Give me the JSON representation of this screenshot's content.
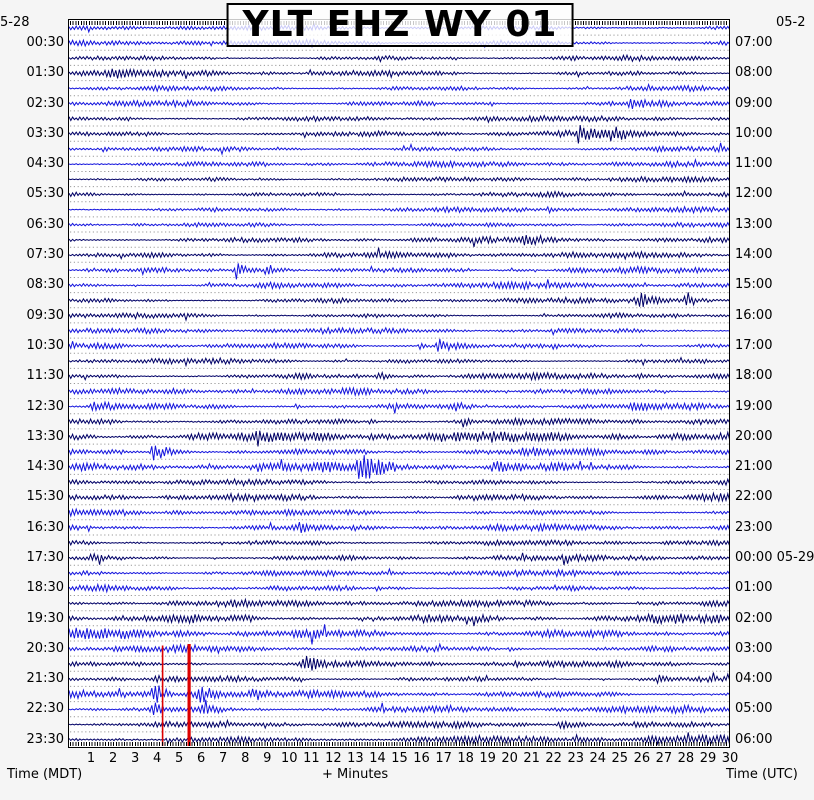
{
  "title": "YLT EHZ WY 01",
  "header": {
    "date_left": "5-28",
    "date_right": "05-2"
  },
  "axes": {
    "left_axis_title": "Time (MDT)",
    "right_axis_title": "Time (UTC)",
    "bottom_axis_title": "+ Minutes",
    "minute_ticks": [
      "1",
      "2",
      "3",
      "4",
      "5",
      "6",
      "7",
      "8",
      "9",
      "10",
      "11",
      "12",
      "13",
      "14",
      "15",
      "16",
      "17",
      "18",
      "19",
      "20",
      "21",
      "22",
      "23",
      "24",
      "25",
      "26",
      "27",
      "28",
      "29",
      "30"
    ],
    "left_times": [
      "00:30",
      "01:30",
      "02:30",
      "03:30",
      "04:30",
      "05:30",
      "06:30",
      "07:30",
      "08:30",
      "09:30",
      "10:30",
      "11:30",
      "12:30",
      "13:30",
      "14:30",
      "15:30",
      "16:30",
      "17:30",
      "18:30",
      "19:30",
      "20:30",
      "21:30",
      "22:30",
      "23:30"
    ],
    "right_times": [
      "07:00",
      "08:00",
      "09:00",
      "10:00",
      "11:00",
      "12:00",
      "13:00",
      "14:00",
      "15:00",
      "16:00",
      "17:00",
      "18:00",
      "19:00",
      "20:00",
      "21:00",
      "22:00",
      "23:00",
      "00:00 05-29",
      "01:00",
      "02:00",
      "03:00",
      "04:00",
      "05:00",
      "06:00"
    ]
  },
  "chart_data": {
    "type": "line",
    "subtype": "helicorder-seismogram",
    "title": "YLT EHZ WY 01",
    "minutes_per_line": 30,
    "n_lines": 48,
    "x_range_minutes": [
      0,
      30
    ],
    "legend": "none",
    "grid": "dotted horizontal separators between trace lines",
    "color_cycle": [
      "#1515dd",
      "#1515dd",
      "#000066",
      "#000066"
    ],
    "grid_dot_color": "#999999",
    "pick_color": "#dd0000",
    "background": "#ffffff",
    "noise_seed": 20240528,
    "picks": [
      {
        "minute": 4.25,
        "width": 1.6,
        "top_line": 41.3
      },
      {
        "minute": 5.45,
        "width": 3.2,
        "top_line": 41.2
      }
    ],
    "lines": [
      {
        "t": "00:00",
        "a": 2.4,
        "e": []
      },
      {
        "t": "00:30",
        "a": 3.0,
        "e": []
      },
      {
        "t": "01:00",
        "a": 2.6,
        "e": []
      },
      {
        "t": "01:30",
        "a": 3.0,
        "e": [
          [
            1.6,
            3.2,
            5
          ]
        ]
      },
      {
        "t": "02:00",
        "a": 2.8,
        "e": []
      },
      {
        "t": "02:30",
        "a": 3.0,
        "e": [
          [
            19.0,
            19.6,
            3
          ],
          [
            25.3,
            26.6,
            5
          ]
        ]
      },
      {
        "t": "03:00",
        "a": 2.6,
        "e": []
      },
      {
        "t": "03:30",
        "a": 3.0,
        "e": [
          [
            22.9,
            24.3,
            7
          ],
          [
            24.4,
            26.1,
            5
          ]
        ]
      },
      {
        "t": "04:00",
        "a": 2.8,
        "e": [
          [
            1.5,
            2.0,
            3
          ]
        ]
      },
      {
        "t": "04:30",
        "a": 2.8,
        "e": []
      },
      {
        "t": "05:00",
        "a": 2.5,
        "e": []
      },
      {
        "t": "05:30",
        "a": 2.5,
        "e": [
          [
            21.7,
            22.2,
            3
          ]
        ]
      },
      {
        "t": "06:00",
        "a": 2.5,
        "e": [
          [
            21.7,
            22.2,
            4
          ]
        ]
      },
      {
        "t": "06:30",
        "a": 2.5,
        "e": []
      },
      {
        "t": "07:00",
        "a": 2.6,
        "e": [
          [
            20.4,
            22.3,
            3
          ]
        ]
      },
      {
        "t": "07:30",
        "a": 3.0,
        "e": []
      },
      {
        "t": "08:00",
        "a": 3.0,
        "e": [
          [
            7.4,
            8.7,
            9
          ],
          [
            8.8,
            10.5,
            5
          ]
        ]
      },
      {
        "t": "08:30",
        "a": 3.0,
        "e": []
      },
      {
        "t": "09:00",
        "a": 2.6,
        "e": [
          [
            25.6,
            27.6,
            6
          ],
          [
            27.9,
            28.6,
            9
          ]
        ]
      },
      {
        "t": "09:30",
        "a": 2.6,
        "e": []
      },
      {
        "t": "10:00",
        "a": 2.6,
        "e": []
      },
      {
        "t": "10:30",
        "a": 3.0,
        "e": [
          [
            15.8,
            16.5,
            6
          ],
          [
            16.6,
            18.2,
            8
          ],
          [
            21.9,
            22.3,
            4
          ]
        ]
      },
      {
        "t": "11:00",
        "a": 2.6,
        "e": []
      },
      {
        "t": "11:30",
        "a": 3.0,
        "e": [
          [
            13.9,
            14.8,
            5
          ],
          [
            25.8,
            26.3,
            3
          ]
        ]
      },
      {
        "t": "12:00",
        "a": 3.0,
        "e": []
      },
      {
        "t": "12:30",
        "a": 3.4,
        "e": [
          [
            0.9,
            2.9,
            4
          ],
          [
            10.2,
            10.7,
            3
          ],
          [
            17.5,
            18.0,
            5
          ]
        ]
      },
      {
        "t": "13:00",
        "a": 3.6,
        "e": [
          [
            13.5,
            14.2,
            3
          ],
          [
            17.8,
            18.3,
            4
          ]
        ]
      },
      {
        "t": "13:30",
        "a": 5.0,
        "e": [
          [
            24.6,
            25.4,
            4
          ]
        ]
      },
      {
        "t": "14:00",
        "a": 3.4,
        "e": [
          [
            3.6,
            5.3,
            10
          ]
        ]
      },
      {
        "t": "14:30",
        "a": 4.0,
        "e": [
          [
            12.9,
            14.9,
            13
          ],
          [
            19.0,
            21.0,
            4
          ]
        ]
      },
      {
        "t": "15:00",
        "a": 3.0,
        "e": []
      },
      {
        "t": "15:30",
        "a": 4.0,
        "e": []
      },
      {
        "t": "16:00",
        "a": 3.0,
        "e": []
      },
      {
        "t": "16:30",
        "a": 3.0,
        "e": [
          [
            10.4,
            10.9,
            4
          ],
          [
            19.4,
            19.9,
            4
          ]
        ]
      },
      {
        "t": "17:00",
        "a": 2.8,
        "e": []
      },
      {
        "t": "17:30",
        "a": 3.0,
        "e": [
          [
            0.9,
            1.4,
            4
          ],
          [
            19.2,
            19.8,
            5
          ]
        ]
      },
      {
        "t": "18:00",
        "a": 2.8,
        "e": []
      },
      {
        "t": "18:30",
        "a": 3.0,
        "e": [
          [
            13.9,
            14.4,
            4
          ]
        ]
      },
      {
        "t": "19:00",
        "a": 3.2,
        "e": []
      },
      {
        "t": "19:30",
        "a": 5.0,
        "e": []
      },
      {
        "t": "20:00",
        "a": 5.0,
        "e": []
      },
      {
        "t": "20:30",
        "a": 3.4,
        "e": [
          [
            19.9,
            20.5,
            4
          ]
        ]
      },
      {
        "t": "21:00",
        "a": 3.0,
        "e": [
          [
            10.4,
            12.1,
            7
          ],
          [
            20.2,
            20.7,
            4
          ]
        ]
      },
      {
        "t": "21:30",
        "a": 3.0,
        "e": [
          [
            3.9,
            4.3,
            4
          ],
          [
            26.6,
            27.4,
            5
          ]
        ]
      },
      {
        "t": "22:00",
        "a": 3.5,
        "e": [
          [
            3.7,
            4.8,
            12
          ],
          [
            5.6,
            7.7,
            8
          ],
          [
            8.0,
            9.5,
            4
          ]
        ]
      },
      {
        "t": "22:30",
        "a": 3.5,
        "e": [
          [
            3.6,
            4.5,
            7
          ],
          [
            5.7,
            7.3,
            5
          ]
        ]
      },
      {
        "t": "23:00",
        "a": 3.0,
        "e": [
          [
            22.1,
            23.2,
            6
          ]
        ]
      },
      {
        "t": "23:30",
        "a": 4.2,
        "e": [
          [
            22.9,
            23.5,
            5
          ]
        ]
      }
    ]
  }
}
